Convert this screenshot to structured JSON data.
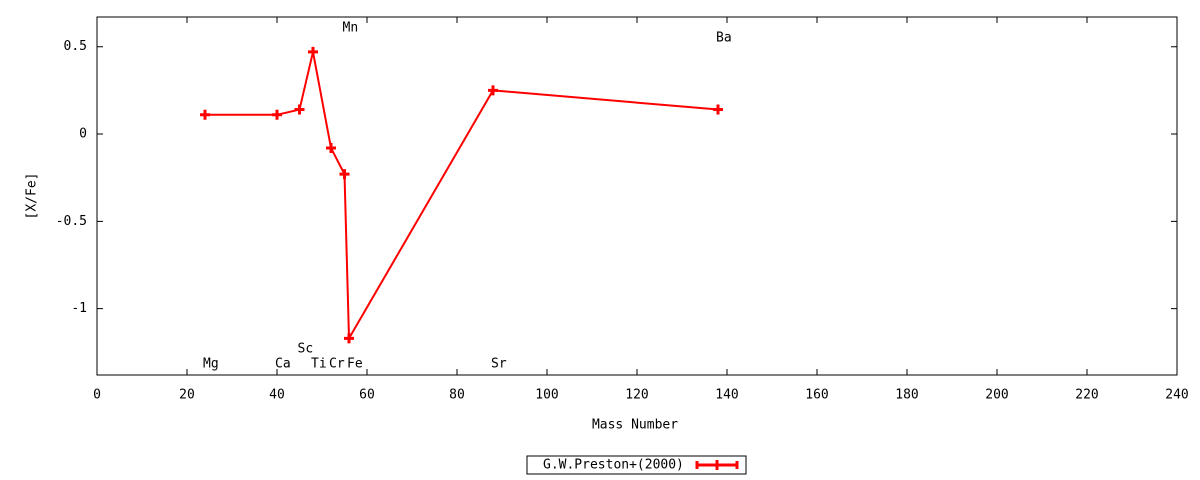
{
  "chart_data": {
    "type": "line",
    "xlabel": "Mass Number",
    "ylabel": "[X/Fe]",
    "x": [
      24,
      40,
      45,
      48,
      52,
      55,
      56,
      88,
      138
    ],
    "point_labels": [
      "Mg",
      "Ca",
      "Sc",
      "Ti",
      "Cr",
      "Mn",
      "Fe",
      "Sr",
      "Ba"
    ],
    "series": [
      {
        "name": "G.W.Preston+(2000)",
        "color": "#ff0000",
        "values": [
          0.11,
          0.11,
          0.14,
          0.47,
          -0.08,
          -0.23,
          -1.17,
          0.25,
          0.14
        ]
      }
    ],
    "xlim": [
      0,
      240
    ],
    "xticks": [
      0,
      20,
      40,
      60,
      80,
      100,
      120,
      140,
      160,
      180,
      200,
      220,
      240
    ],
    "ylim": [
      -1.38,
      0.67
    ],
    "yticks": [
      -1,
      -0.5,
      0,
      0.5
    ],
    "grid": false,
    "legend": "bottom"
  }
}
